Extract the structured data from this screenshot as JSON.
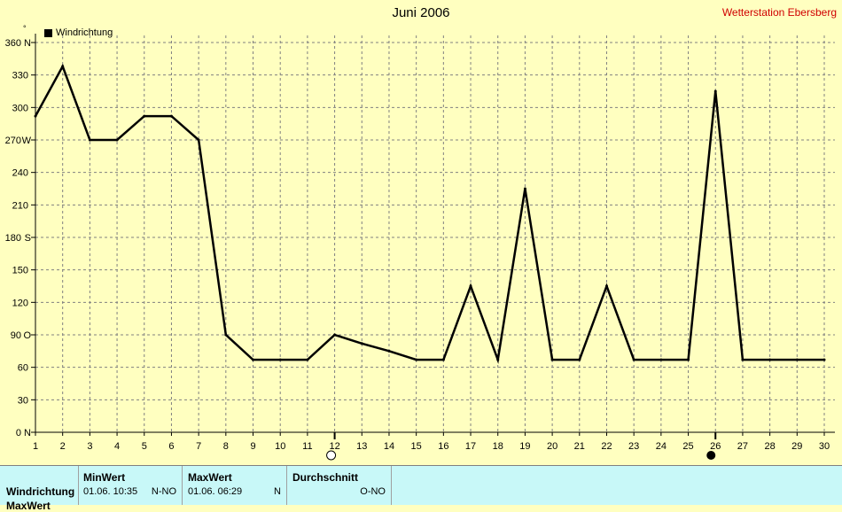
{
  "header": {
    "title": "Juni 2006",
    "station": "Wetterstation Ebersberg",
    "unit_mark": "°"
  },
  "chart_data": {
    "type": "line",
    "title": "Juni 2006",
    "series": [
      {
        "name": "Windrichtung",
        "x": [
          1,
          2,
          3,
          4,
          5,
          6,
          7,
          8,
          9,
          10,
          11,
          12,
          13,
          14,
          15,
          16,
          17,
          18,
          19,
          20,
          21,
          22,
          23,
          24,
          25,
          26,
          27,
          28,
          29,
          30
        ],
        "values": [
          292,
          338,
          270,
          270,
          292,
          292,
          270,
          90,
          67,
          67,
          67,
          90,
          82,
          75,
          67,
          67,
          135,
          67,
          225,
          67,
          67,
          135,
          67,
          67,
          67,
          315,
          67,
          67,
          67,
          67
        ]
      }
    ],
    "ylim": [
      0,
      360
    ],
    "yticks": [
      {
        "value": 0,
        "label": "0",
        "dir": "N"
      },
      {
        "value": 30,
        "label": "30",
        "dir": ""
      },
      {
        "value": 60,
        "label": "60",
        "dir": ""
      },
      {
        "value": 90,
        "label": "90",
        "dir": "O"
      },
      {
        "value": 120,
        "label": "120",
        "dir": ""
      },
      {
        "value": 150,
        "label": "150",
        "dir": ""
      },
      {
        "value": 180,
        "label": "180",
        "dir": "S"
      },
      {
        "value": 210,
        "label": "210",
        "dir": ""
      },
      {
        "value": 240,
        "label": "240",
        "dir": ""
      },
      {
        "value": 270,
        "label": "270",
        "dir": "W"
      },
      {
        "value": 300,
        "label": "300",
        "dir": ""
      },
      {
        "value": 330,
        "label": "330",
        "dir": ""
      },
      {
        "value": 360,
        "label": "360",
        "dir": "N"
      }
    ],
    "xlim": [
      1,
      30
    ],
    "xticks": [
      "1",
      "2",
      "3",
      "4",
      "5",
      "6",
      "7",
      "8",
      "9",
      "10",
      "11",
      "12",
      "13",
      "14",
      "15",
      "16",
      "17",
      "18",
      "19",
      "20",
      "21",
      "22",
      "23",
      "24",
      "25",
      "26",
      "27",
      "28",
      "29",
      "30"
    ],
    "grid": true,
    "legend": "top-left",
    "moon_markers": [
      {
        "day": 12,
        "phase": "full-moon"
      },
      {
        "day": 26,
        "phase": "new-moon"
      }
    ],
    "colors": {
      "line": "#000000",
      "grid": "#808080",
      "background": "#ffffc0"
    }
  },
  "stats": {
    "row_label": "Windrichtung",
    "row_label_2": "MaxWert",
    "min": {
      "header": "MinWert",
      "datetime": "01.06.  10:35",
      "value": "N-NO"
    },
    "max": {
      "header": "MaxWert",
      "datetime": "01.06.  06:29",
      "value": "N"
    },
    "avg": {
      "header": "Durchschnitt",
      "value": "O-NO"
    }
  }
}
